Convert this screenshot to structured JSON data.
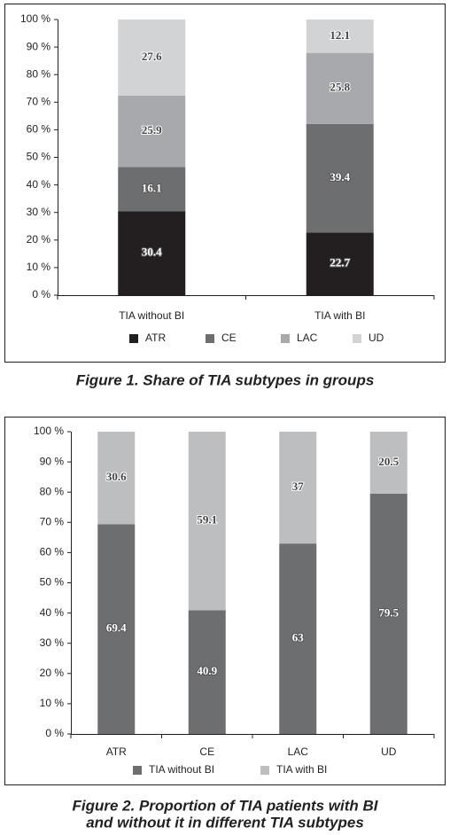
{
  "chart_data": [
    {
      "type": "stacked_bar",
      "caption": [
        "Figure 1. Share of TIA subtypes in groups"
      ],
      "categories": [
        "TIA without BI",
        "TIA with BI"
      ],
      "series": [
        {
          "name": "ATR",
          "color": "#231f20",
          "values": [
            30.4,
            22.7
          ]
        },
        {
          "name": "CE",
          "color": "#6d6e70",
          "values": [
            16.1,
            39.4
          ]
        },
        {
          "name": "LAC",
          "color": "#a7a9ac",
          "values": [
            25.9,
            25.8
          ]
        },
        {
          "name": "UD",
          "color": "#d1d3d4",
          "values": [
            27.6,
            12.1
          ]
        }
      ],
      "ylim": [
        0,
        100
      ],
      "yticks": [
        {
          "value": 0,
          "label": "0 %"
        },
        {
          "value": 10,
          "label": "10 %"
        },
        {
          "value": 20,
          "label": "20 %"
        },
        {
          "value": 30,
          "label": "30 %"
        },
        {
          "value": 40,
          "label": "40 %"
        },
        {
          "value": 50,
          "label": "50 %"
        },
        {
          "value": 60,
          "label": "60 %"
        },
        {
          "value": 70,
          "label": "70 %"
        },
        {
          "value": 80,
          "label": "80 %"
        },
        {
          "value": 90,
          "label": "90 %"
        },
        {
          "value": 100,
          "label": "100 %"
        }
      ],
      "legend": "bottom"
    },
    {
      "type": "stacked_bar",
      "caption": [
        "Figure 2. Proportion of TIA patients with BI",
        "and without it in different TIA subtypes"
      ],
      "categories": [
        "ATR",
        "CE",
        "LAC",
        "UD"
      ],
      "series": [
        {
          "name": "TIA without BI",
          "color": "#6d6e70",
          "values": [
            69.4,
            40.9,
            63,
            79.5
          ]
        },
        {
          "name": "TIA with BI",
          "color": "#bcbec0",
          "values": [
            30.6,
            59.1,
            37,
            20.5
          ]
        }
      ],
      "ylim": [
        0,
        100
      ],
      "yticks": [
        {
          "value": 0,
          "label": "0 %"
        },
        {
          "value": 10,
          "label": "10 %"
        },
        {
          "value": 20,
          "label": "20 %"
        },
        {
          "value": 30,
          "label": "30 %"
        },
        {
          "value": 40,
          "label": "40 %"
        },
        {
          "value": 50,
          "label": "50 %"
        },
        {
          "value": 60,
          "label": "60 %"
        },
        {
          "value": 70,
          "label": "70 %"
        },
        {
          "value": 80,
          "label": "80 %"
        },
        {
          "value": 90,
          "label": "90 %"
        },
        {
          "value": 100,
          "label": "100 %"
        }
      ],
      "legend": "bottom"
    }
  ]
}
